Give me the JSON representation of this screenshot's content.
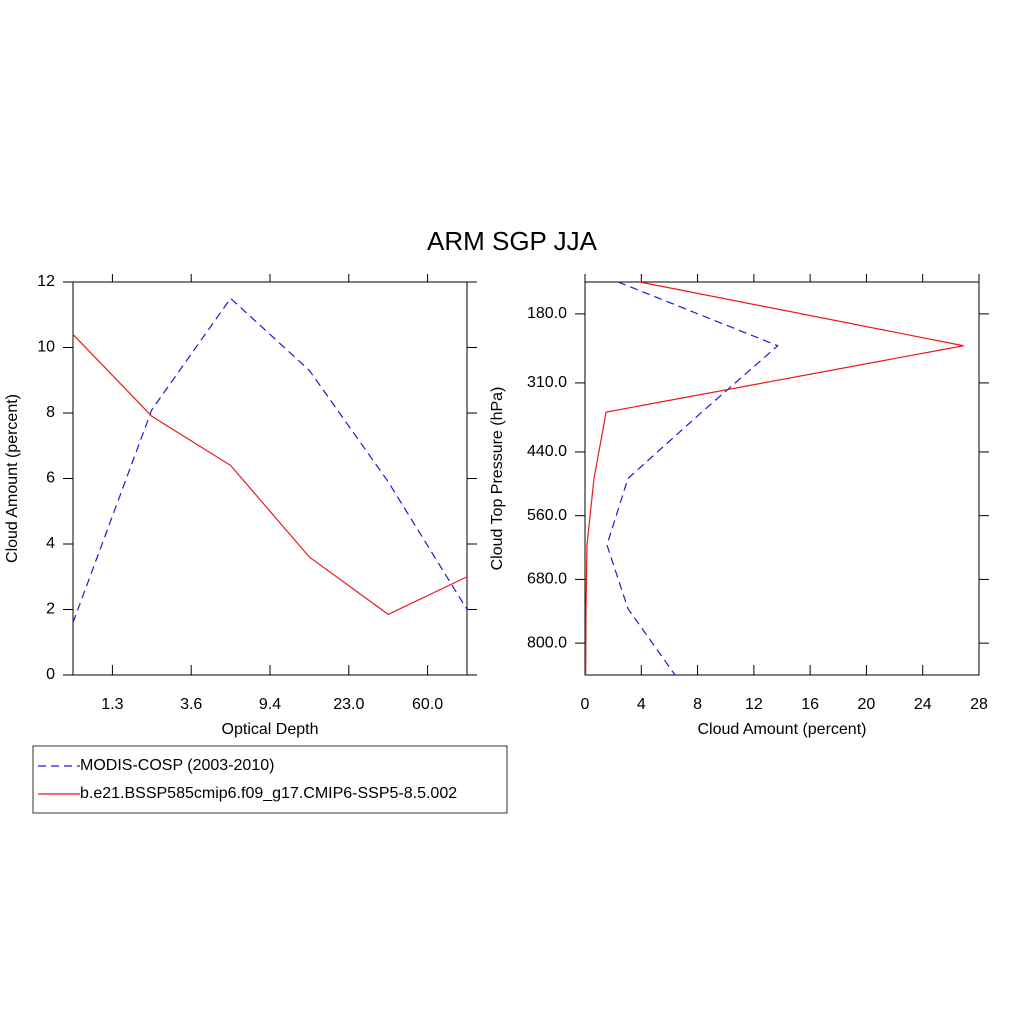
{
  "title": "ARM SGP JJA",
  "chart_data": [
    {
      "type": "line",
      "xlabel": "Optical Depth",
      "ylabel": "Cloud Amount (percent)",
      "x": [
        0,
        1,
        2,
        3,
        4,
        5
      ],
      "xlim": [
        0,
        5
      ],
      "xticks": [
        {
          "value": 0.5,
          "label": "1.3"
        },
        {
          "value": 1.5,
          "label": "3.6"
        },
        {
          "value": 2.5,
          "label": "9.4"
        },
        {
          "value": 3.5,
          "label": "23.0"
        },
        {
          "value": 4.5,
          "label": "60.0"
        }
      ],
      "ylim": [
        0,
        12
      ],
      "yticks": [
        0,
        2,
        4,
        6,
        8,
        10,
        12
      ],
      "series": [
        {
          "name": "MODIS-COSP (2003-2010)",
          "color": "#1a1adc",
          "style": "dashed",
          "values": [
            1.6,
            8.1,
            11.5,
            9.3,
            5.9,
            2.0
          ]
        },
        {
          "name": "b.e21.BSSP585cmip6.f09_g17.CMIP6-SSP5-8.5.002",
          "color": "#e8191c",
          "style": "solid",
          "values": [
            10.4,
            7.9,
            6.4,
            3.6,
            1.85,
            3.0
          ]
        }
      ]
    },
    {
      "type": "line",
      "orientation": "horizontal",
      "xlabel": "Cloud Amount (percent)",
      "ylabel": "Cloud Top Pressure (hPa)",
      "y": [
        120,
        240,
        365,
        490,
        615,
        735,
        860
      ],
      "ylim": [
        860,
        120
      ],
      "yticks": [
        {
          "value": 180,
          "label": "180.0"
        },
        {
          "value": 310,
          "label": "310.0"
        },
        {
          "value": 440,
          "label": "440.0"
        },
        {
          "value": 560,
          "label": "560.0"
        },
        {
          "value": 680,
          "label": "680.0"
        },
        {
          "value": 800,
          "label": "800.0"
        }
      ],
      "xlim": [
        0,
        28
      ],
      "xticks": [
        0,
        4,
        8,
        12,
        16,
        20,
        24,
        28
      ],
      "series": [
        {
          "name": "MODIS-COSP (2003-2010)",
          "color": "#1a1adc",
          "style": "dashed",
          "values": [
            2.35,
            13.7,
            8.3,
            3.05,
            1.56,
            3.05,
            6.4
          ]
        },
        {
          "name": "b.e21.BSSP585cmip6.f09_g17.CMIP6-SSP5-8.5.002",
          "color": "#e8191c",
          "style": "solid",
          "values": [
            3.9,
            26.9,
            1.5,
            0.64,
            0.14,
            0.07,
            0.05
          ]
        }
      ]
    }
  ]
}
